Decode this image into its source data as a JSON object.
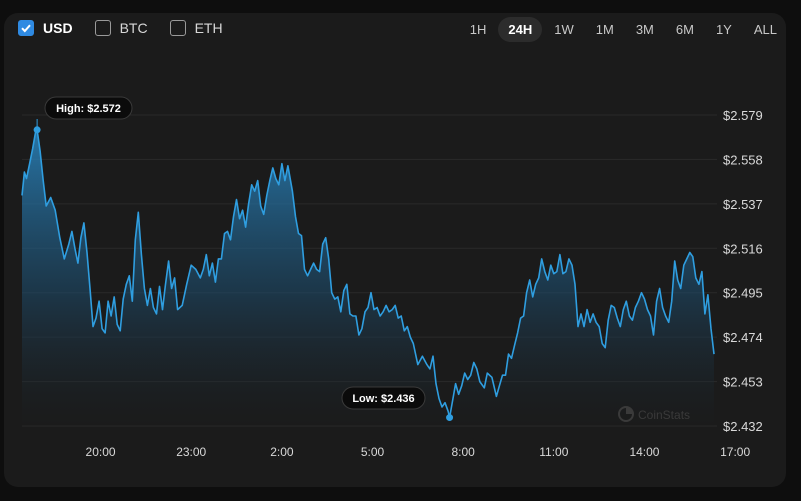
{
  "currencies": [
    {
      "label": "USD",
      "checked": true
    },
    {
      "label": "BTC",
      "checked": false
    },
    {
      "label": "ETH",
      "checked": false
    }
  ],
  "time_ranges": [
    "1H",
    "24H",
    "1W",
    "1M",
    "3M",
    "6M",
    "1Y",
    "ALL"
  ],
  "active_range": "24H",
  "watermark": "CoinStats",
  "colors": {
    "line": "#2f9ee0",
    "accent": "#2f8ae2",
    "panel": "#1b1b1b",
    "background": "#0e0e0e"
  },
  "chart_data": {
    "type": "area",
    "y_ticks": [
      "$2.579",
      "$2.558",
      "$2.537",
      "$2.516",
      "$2.495",
      "$2.474",
      "$2.453",
      "$2.432"
    ],
    "ylim": [
      2.432,
      2.579
    ],
    "x_ticks": [
      "20:00",
      "23:00",
      "2:00",
      "5:00",
      "8:00",
      "11:00",
      "14:00",
      "17:00"
    ],
    "grid": true,
    "high_label": "High: $2.572",
    "low_label": "Low: $2.436",
    "high": {
      "x": 0.5,
      "y": 2.572
    },
    "low": {
      "x": 14.15,
      "y": 2.436
    },
    "series": [
      {
        "points": [
          [
            0.0,
            2.541
          ],
          [
            0.08,
            2.552
          ],
          [
            0.15,
            2.549
          ],
          [
            0.25,
            2.556
          ],
          [
            0.35,
            2.563
          ],
          [
            0.45,
            2.571
          ],
          [
            0.5,
            2.572
          ],
          [
            0.6,
            2.562
          ],
          [
            0.7,
            2.548
          ],
          [
            0.8,
            2.536
          ],
          [
            0.95,
            2.54
          ],
          [
            1.1,
            2.534
          ],
          [
            1.25,
            2.521
          ],
          [
            1.4,
            2.511
          ],
          [
            1.55,
            2.518
          ],
          [
            1.65,
            2.524
          ],
          [
            1.75,
            2.516
          ],
          [
            1.85,
            2.509
          ],
          [
            1.95,
            2.521
          ],
          [
            2.05,
            2.528
          ],
          [
            2.15,
            2.514
          ],
          [
            2.25,
            2.497
          ],
          [
            2.35,
            2.479
          ],
          [
            2.45,
            2.483
          ],
          [
            2.55,
            2.491
          ],
          [
            2.65,
            2.478
          ],
          [
            2.75,
            2.476
          ],
          [
            2.85,
            2.491
          ],
          [
            2.95,
            2.484
          ],
          [
            3.05,
            2.493
          ],
          [
            3.15,
            2.48
          ],
          [
            3.25,
            2.477
          ],
          [
            3.35,
            2.492
          ],
          [
            3.45,
            2.499
          ],
          [
            3.55,
            2.503
          ],
          [
            3.65,
            2.491
          ],
          [
            3.75,
            2.52
          ],
          [
            3.85,
            2.533
          ],
          [
            3.95,
            2.513
          ],
          [
            4.05,
            2.497
          ],
          [
            4.15,
            2.489
          ],
          [
            4.25,
            2.497
          ],
          [
            4.35,
            2.488
          ],
          [
            4.45,
            2.485
          ],
          [
            4.55,
            2.498
          ],
          [
            4.65,
            2.487
          ],
          [
            4.75,
            2.499
          ],
          [
            4.85,
            2.51
          ],
          [
            4.95,
            2.497
          ],
          [
            5.05,
            2.502
          ],
          [
            5.15,
            2.487
          ],
          [
            5.3,
            2.489
          ],
          [
            5.45,
            2.499
          ],
          [
            5.6,
            2.508
          ],
          [
            5.75,
            2.506
          ],
          [
            5.9,
            2.502
          ],
          [
            6.0,
            2.506
          ],
          [
            6.1,
            2.513
          ],
          [
            6.2,
            2.503
          ],
          [
            6.3,
            2.509
          ],
          [
            6.4,
            2.5
          ],
          [
            6.5,
            2.511
          ],
          [
            6.6,
            2.511
          ],
          [
            6.7,
            2.523
          ],
          [
            6.8,
            2.524
          ],
          [
            6.9,
            2.52
          ],
          [
            7.0,
            2.531
          ],
          [
            7.1,
            2.539
          ],
          [
            7.2,
            2.53
          ],
          [
            7.3,
            2.534
          ],
          [
            7.4,
            2.526
          ],
          [
            7.5,
            2.537
          ],
          [
            7.6,
            2.546
          ],
          [
            7.7,
            2.543
          ],
          [
            7.8,
            2.548
          ],
          [
            7.9,
            2.536
          ],
          [
            8.0,
            2.532
          ],
          [
            8.1,
            2.541
          ],
          [
            8.2,
            2.548
          ],
          [
            8.3,
            2.554
          ],
          [
            8.4,
            2.549
          ],
          [
            8.5,
            2.546
          ],
          [
            8.6,
            2.556
          ],
          [
            8.7,
            2.548
          ],
          [
            8.8,
            2.555
          ],
          [
            8.95,
            2.543
          ],
          [
            9.05,
            2.531
          ],
          [
            9.15,
            2.523
          ],
          [
            9.25,
            2.522
          ],
          [
            9.35,
            2.506
          ],
          [
            9.45,
            2.503
          ],
          [
            9.55,
            2.506
          ],
          [
            9.65,
            2.509
          ],
          [
            9.75,
            2.506
          ],
          [
            9.85,
            2.505
          ],
          [
            9.95,
            2.518
          ],
          [
            10.05,
            2.521
          ],
          [
            10.15,
            2.511
          ],
          [
            10.25,
            2.495
          ],
          [
            10.35,
            2.492
          ],
          [
            10.45,
            2.493
          ],
          [
            10.55,
            2.486
          ],
          [
            10.65,
            2.496
          ],
          [
            10.75,
            2.499
          ],
          [
            10.85,
            2.485
          ],
          [
            10.95,
            2.484
          ],
          [
            11.05,
            2.484
          ],
          [
            11.15,
            2.475
          ],
          [
            11.25,
            2.478
          ],
          [
            11.35,
            2.486
          ],
          [
            11.45,
            2.488
          ],
          [
            11.55,
            2.495
          ],
          [
            11.65,
            2.487
          ],
          [
            11.75,
            2.488
          ],
          [
            11.85,
            2.484
          ],
          [
            11.95,
            2.486
          ],
          [
            12.05,
            2.489
          ],
          [
            12.15,
            2.486
          ],
          [
            12.25,
            2.487
          ],
          [
            12.35,
            2.489
          ],
          [
            12.45,
            2.483
          ],
          [
            12.55,
            2.484
          ],
          [
            12.65,
            2.477
          ],
          [
            12.75,
            2.479
          ],
          [
            12.85,
            2.474
          ],
          [
            12.95,
            2.471
          ],
          [
            13.1,
            2.461
          ],
          [
            13.25,
            2.465
          ],
          [
            13.4,
            2.461
          ],
          [
            13.5,
            2.459
          ],
          [
            13.6,
            2.465
          ],
          [
            13.7,
            2.452
          ],
          [
            13.8,
            2.445
          ],
          [
            13.9,
            2.441
          ],
          [
            14.0,
            2.443
          ],
          [
            14.1,
            2.439
          ],
          [
            14.15,
            2.436
          ],
          [
            14.25,
            2.444
          ],
          [
            14.35,
            2.452
          ],
          [
            14.45,
            2.447
          ],
          [
            14.55,
            2.451
          ],
          [
            14.65,
            2.457
          ],
          [
            14.75,
            2.454
          ],
          [
            14.85,
            2.456
          ],
          [
            14.95,
            2.462
          ],
          [
            15.05,
            2.459
          ],
          [
            15.15,
            2.453
          ],
          [
            15.3,
            2.45
          ],
          [
            15.4,
            2.457
          ],
          [
            15.55,
            2.455
          ],
          [
            15.7,
            2.446
          ],
          [
            15.8,
            2.451
          ],
          [
            15.9,
            2.456
          ],
          [
            16.0,
            2.456
          ],
          [
            16.1,
            2.466
          ],
          [
            16.2,
            2.464
          ],
          [
            16.3,
            2.47
          ],
          [
            16.4,
            2.476
          ],
          [
            16.5,
            2.483
          ],
          [
            16.6,
            2.484
          ],
          [
            16.7,
            2.495
          ],
          [
            16.8,
            2.501
          ],
          [
            16.9,
            2.493
          ],
          [
            17.0,
            2.499
          ],
          [
            17.1,
            2.502
          ],
          [
            17.2,
            2.511
          ],
          [
            17.3,
            2.505
          ],
          [
            17.4,
            2.501
          ],
          [
            17.5,
            2.508
          ],
          [
            17.6,
            2.504
          ],
          [
            17.7,
            2.505
          ],
          [
            17.8,
            2.513
          ],
          [
            17.9,
            2.504
          ],
          [
            18.0,
            2.505
          ],
          [
            18.1,
            2.511
          ],
          [
            18.2,
            2.508
          ],
          [
            18.3,
            2.499
          ],
          [
            18.4,
            2.479
          ],
          [
            18.5,
            2.485
          ],
          [
            18.6,
            2.479
          ],
          [
            18.7,
            2.487
          ],
          [
            18.8,
            2.481
          ],
          [
            18.9,
            2.485
          ],
          [
            19.0,
            2.481
          ],
          [
            19.1,
            2.479
          ],
          [
            19.2,
            2.471
          ],
          [
            19.3,
            2.469
          ],
          [
            19.4,
            2.482
          ],
          [
            19.5,
            2.489
          ],
          [
            19.6,
            2.488
          ],
          [
            19.7,
            2.483
          ],
          [
            19.8,
            2.479
          ],
          [
            19.9,
            2.487
          ],
          [
            20.0,
            2.491
          ],
          [
            20.1,
            2.484
          ],
          [
            20.2,
            2.482
          ],
          [
            20.3,
            2.488
          ],
          [
            20.4,
            2.491
          ],
          [
            20.5,
            2.495
          ],
          [
            20.6,
            2.492
          ],
          [
            20.7,
            2.487
          ],
          [
            20.8,
            2.484
          ],
          [
            20.9,
            2.475
          ],
          [
            21.0,
            2.491
          ],
          [
            21.1,
            2.497
          ],
          [
            21.2,
            2.488
          ],
          [
            21.3,
            2.484
          ],
          [
            21.4,
            2.481
          ],
          [
            21.5,
            2.491
          ],
          [
            21.6,
            2.51
          ],
          [
            21.7,
            2.501
          ],
          [
            21.8,
            2.497
          ],
          [
            21.9,
            2.508
          ],
          [
            22.0,
            2.511
          ],
          [
            22.1,
            2.514
          ],
          [
            22.2,
            2.512
          ],
          [
            22.3,
            2.502
          ],
          [
            22.4,
            2.499
          ],
          [
            22.5,
            2.505
          ],
          [
            22.6,
            2.485
          ],
          [
            22.7,
            2.494
          ],
          [
            22.8,
            2.478
          ],
          [
            22.9,
            2.466
          ]
        ]
      }
    ]
  }
}
